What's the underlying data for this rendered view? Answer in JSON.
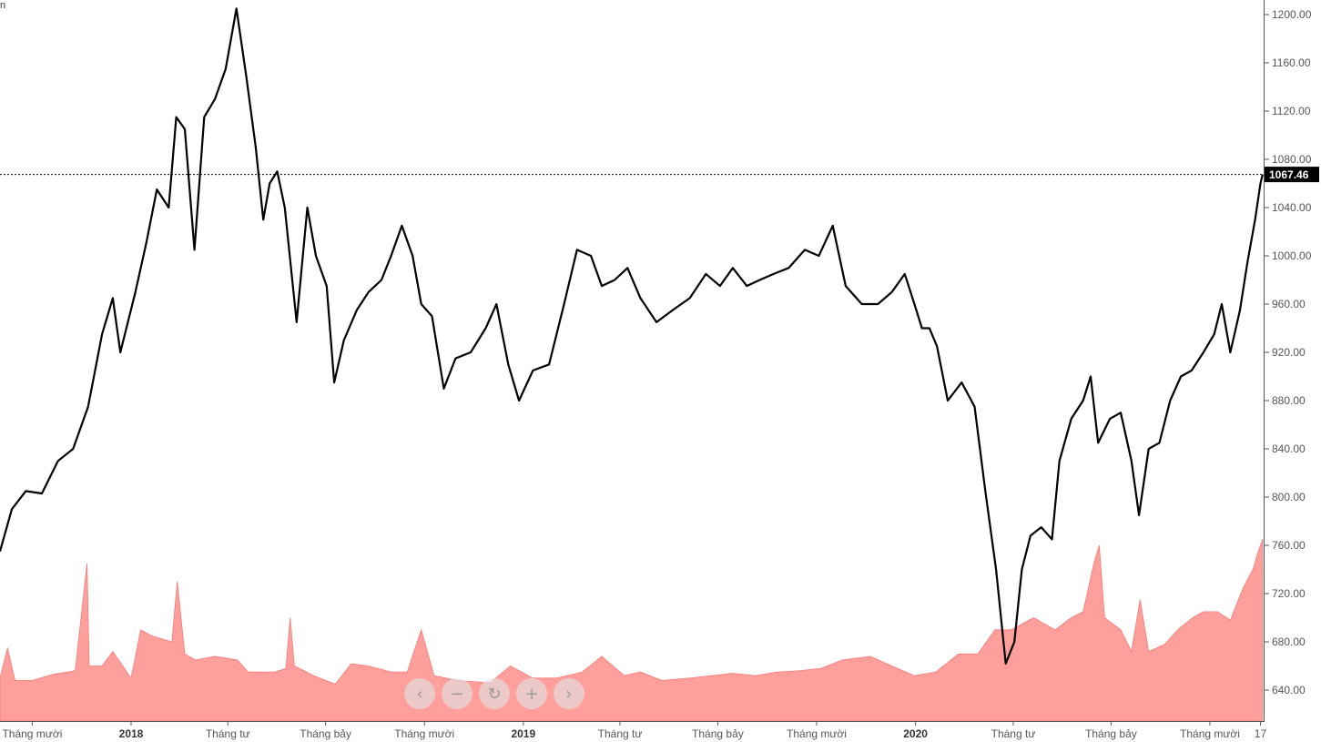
{
  "corner_label": "n",
  "nav_buttons": [
    {
      "name": "scroll-left-button",
      "icon": "chevron-left-icon",
      "glyph": "‹"
    },
    {
      "name": "zoom-out-button",
      "icon": "minus-icon",
      "glyph": "−"
    },
    {
      "name": "reset-button",
      "icon": "refresh-icon",
      "glyph": "↻"
    },
    {
      "name": "zoom-in-button",
      "icon": "plus-icon",
      "glyph": "+"
    },
    {
      "name": "scroll-right-button",
      "icon": "chevron-right-icon",
      "glyph": "›"
    }
  ],
  "chart_data": {
    "type": "line",
    "title": "",
    "xlabel": "",
    "ylabel": "",
    "last_value": 1067.46,
    "last_value_label": "1067.46",
    "ylim": [
      620,
      1210
    ],
    "y_ticks": [
      640,
      680,
      720,
      760,
      800,
      840,
      880,
      920,
      960,
      1000,
      1040,
      1080,
      1120,
      1160,
      1200
    ],
    "y_tick_labels": [
      "640.00",
      "680.00",
      "720.00",
      "760.00",
      "800.00",
      "840.00",
      "880.00",
      "920.00",
      "960.00",
      "1000.00",
      "1040.00",
      "1080.00",
      "1120.00",
      "1160.00",
      "1200.00"
    ],
    "xlim": [
      "2017-09-01",
      "2020-11-20"
    ],
    "x_ticks": [
      {
        "date": "2017-10-01",
        "label": "Tháng mười",
        "bold": false
      },
      {
        "date": "2018-01-01",
        "label": "2018",
        "bold": true
      },
      {
        "date": "2018-04-01",
        "label": "Tháng tư",
        "bold": false
      },
      {
        "date": "2018-07-01",
        "label": "Tháng bảy",
        "bold": false
      },
      {
        "date": "2018-10-01",
        "label": "Tháng mười",
        "bold": false
      },
      {
        "date": "2019-01-01",
        "label": "2019",
        "bold": true
      },
      {
        "date": "2019-04-01",
        "label": "Tháng tư",
        "bold": false
      },
      {
        "date": "2019-07-01",
        "label": "Tháng bảy",
        "bold": false
      },
      {
        "date": "2019-10-01",
        "label": "Tháng mười",
        "bold": false
      },
      {
        "date": "2020-01-01",
        "label": "2020",
        "bold": true
      },
      {
        "date": "2020-04-01",
        "label": "Tháng tư",
        "bold": false
      },
      {
        "date": "2020-07-01",
        "label": "Tháng bảy",
        "bold": false
      },
      {
        "date": "2020-10-01",
        "label": "Tháng mười",
        "bold": false
      },
      {
        "date": "2020-11-17",
        "label": "17",
        "bold": false
      }
    ],
    "series": [
      {
        "type": "line",
        "color": "#000000",
        "points": [
          [
            "2017-09-01",
            755
          ],
          [
            "2017-09-12",
            790
          ],
          [
            "2017-09-25",
            805
          ],
          [
            "2017-10-10",
            803
          ],
          [
            "2017-10-25",
            830
          ],
          [
            "2017-11-08",
            840
          ],
          [
            "2017-11-22",
            875
          ],
          [
            "2017-12-05",
            935
          ],
          [
            "2017-12-15",
            965
          ],
          [
            "2017-12-22",
            920
          ],
          [
            "2018-01-05",
            970
          ],
          [
            "2018-01-15",
            1010
          ],
          [
            "2018-01-25",
            1055
          ],
          [
            "2018-02-05",
            1040
          ],
          [
            "2018-02-12",
            1115
          ],
          [
            "2018-02-20",
            1105
          ],
          [
            "2018-03-01",
            1005
          ],
          [
            "2018-03-10",
            1115
          ],
          [
            "2018-03-20",
            1130
          ],
          [
            "2018-03-30",
            1155
          ],
          [
            "2018-04-09",
            1205
          ],
          [
            "2018-04-18",
            1150
          ],
          [
            "2018-04-27",
            1090
          ],
          [
            "2018-05-04",
            1030
          ],
          [
            "2018-05-10",
            1060
          ],
          [
            "2018-05-17",
            1070
          ],
          [
            "2018-05-24",
            1040
          ],
          [
            "2018-06-04",
            945
          ],
          [
            "2018-06-14",
            1040
          ],
          [
            "2018-06-22",
            1000
          ],
          [
            "2018-07-02",
            975
          ],
          [
            "2018-07-09",
            895
          ],
          [
            "2018-07-18",
            930
          ],
          [
            "2018-07-30",
            955
          ],
          [
            "2018-08-10",
            970
          ],
          [
            "2018-08-22",
            980
          ],
          [
            "2018-08-31",
            1000
          ],
          [
            "2018-09-10",
            1025
          ],
          [
            "2018-09-20",
            1000
          ],
          [
            "2018-09-28",
            960
          ],
          [
            "2018-10-08",
            950
          ],
          [
            "2018-10-19",
            890
          ],
          [
            "2018-10-30",
            915
          ],
          [
            "2018-11-13",
            920
          ],
          [
            "2018-11-27",
            940
          ],
          [
            "2018-12-07",
            960
          ],
          [
            "2018-12-18",
            910
          ],
          [
            "2018-12-28",
            880
          ],
          [
            "2019-01-10",
            905
          ],
          [
            "2019-01-25",
            910
          ],
          [
            "2019-02-08",
            960
          ],
          [
            "2019-02-20",
            1005
          ],
          [
            "2019-03-05",
            1000
          ],
          [
            "2019-03-15",
            975
          ],
          [
            "2019-03-27",
            980
          ],
          [
            "2019-04-08",
            990
          ],
          [
            "2019-04-20",
            965
          ],
          [
            "2019-05-05",
            945
          ],
          [
            "2019-05-20",
            955
          ],
          [
            "2019-06-05",
            965
          ],
          [
            "2019-06-20",
            985
          ],
          [
            "2019-07-03",
            975
          ],
          [
            "2019-07-15",
            990
          ],
          [
            "2019-07-28",
            975
          ],
          [
            "2019-08-09",
            980
          ],
          [
            "2019-08-22",
            985
          ],
          [
            "2019-09-05",
            990
          ],
          [
            "2019-09-20",
            1005
          ],
          [
            "2019-10-03",
            1000
          ],
          [
            "2019-10-16",
            1025
          ],
          [
            "2019-10-28",
            975
          ],
          [
            "2019-11-12",
            960
          ],
          [
            "2019-11-27",
            960
          ],
          [
            "2019-12-10",
            970
          ],
          [
            "2019-12-22",
            985
          ],
          [
            "2019-12-31",
            960
          ],
          [
            "2020-01-07",
            940
          ],
          [
            "2020-01-14",
            940
          ],
          [
            "2020-01-21",
            925
          ],
          [
            "2020-01-31",
            880
          ],
          [
            "2020-02-13",
            895
          ],
          [
            "2020-02-25",
            875
          ],
          [
            "2020-03-06",
            805
          ],
          [
            "2020-03-16",
            740
          ],
          [
            "2020-03-25",
            662
          ],
          [
            "2020-04-02",
            680
          ],
          [
            "2020-04-09",
            740
          ],
          [
            "2020-04-17",
            768
          ],
          [
            "2020-04-27",
            775
          ],
          [
            "2020-05-07",
            765
          ],
          [
            "2020-05-14",
            830
          ],
          [
            "2020-05-25",
            865
          ],
          [
            "2020-06-05",
            880
          ],
          [
            "2020-06-12",
            900
          ],
          [
            "2020-06-19",
            845
          ],
          [
            "2020-06-30",
            865
          ],
          [
            "2020-07-10",
            870
          ],
          [
            "2020-07-20",
            830
          ],
          [
            "2020-07-27",
            785
          ],
          [
            "2020-08-05",
            840
          ],
          [
            "2020-08-15",
            845
          ],
          [
            "2020-08-25",
            880
          ],
          [
            "2020-09-04",
            900
          ],
          [
            "2020-09-14",
            905
          ],
          [
            "2020-09-25",
            920
          ],
          [
            "2020-10-05",
            935
          ],
          [
            "2020-10-12",
            960
          ],
          [
            "2020-10-20",
            920
          ],
          [
            "2020-10-29",
            955
          ],
          [
            "2020-11-05",
            995
          ],
          [
            "2020-11-12",
            1030
          ],
          [
            "2020-11-17",
            1060
          ],
          [
            "2020-11-19",
            1067.46
          ]
        ]
      },
      {
        "type": "area",
        "color": "#ff9f9b",
        "points": [
          [
            "2017-09-01",
            650
          ],
          [
            "2017-09-08",
            675
          ],
          [
            "2017-09-15",
            648
          ],
          [
            "2017-10-01",
            648
          ],
          [
            "2017-10-20",
            653
          ],
          [
            "2017-11-10",
            656
          ],
          [
            "2017-11-21",
            745
          ],
          [
            "2017-11-23",
            660
          ],
          [
            "2017-12-05",
            660
          ],
          [
            "2017-12-15",
            672
          ],
          [
            "2018-01-01",
            650
          ],
          [
            "2018-01-10",
            690
          ],
          [
            "2018-01-20",
            685
          ],
          [
            "2018-02-08",
            680
          ],
          [
            "2018-02-13",
            730
          ],
          [
            "2018-02-20",
            670
          ],
          [
            "2018-03-02",
            665
          ],
          [
            "2018-03-20",
            668
          ],
          [
            "2018-04-10",
            665
          ],
          [
            "2018-04-20",
            655
          ],
          [
            "2018-05-15",
            655
          ],
          [
            "2018-05-25",
            658
          ],
          [
            "2018-05-29",
            700
          ],
          [
            "2018-06-02",
            660
          ],
          [
            "2018-06-20",
            652
          ],
          [
            "2018-07-10",
            645
          ],
          [
            "2018-07-25",
            662
          ],
          [
            "2018-08-10",
            660
          ],
          [
            "2018-08-31",
            655
          ],
          [
            "2018-09-15",
            655
          ],
          [
            "2018-09-28",
            690
          ],
          [
            "2018-10-10",
            652
          ],
          [
            "2018-11-01",
            648
          ],
          [
            "2018-12-01",
            646
          ],
          [
            "2018-12-20",
            660
          ],
          [
            "2019-01-10",
            650
          ],
          [
            "2019-02-01",
            650
          ],
          [
            "2019-02-25",
            655
          ],
          [
            "2019-03-15",
            668
          ],
          [
            "2019-04-05",
            652
          ],
          [
            "2019-04-20",
            655
          ],
          [
            "2019-05-10",
            648
          ],
          [
            "2019-06-05",
            650
          ],
          [
            "2019-06-25",
            652
          ],
          [
            "2019-07-15",
            654
          ],
          [
            "2019-08-05",
            652
          ],
          [
            "2019-08-25",
            655
          ],
          [
            "2019-09-15",
            656
          ],
          [
            "2019-10-05",
            658
          ],
          [
            "2019-10-25",
            665
          ],
          [
            "2019-11-20",
            668
          ],
          [
            "2019-12-10",
            660
          ],
          [
            "2019-12-31",
            652
          ],
          [
            "2020-01-20",
            655
          ],
          [
            "2020-02-10",
            670
          ],
          [
            "2020-02-28",
            670
          ],
          [
            "2020-03-15",
            690
          ],
          [
            "2020-03-30",
            690
          ],
          [
            "2020-04-20",
            700
          ],
          [
            "2020-05-10",
            690
          ],
          [
            "2020-05-25",
            700
          ],
          [
            "2020-06-05",
            705
          ],
          [
            "2020-06-15",
            745
          ],
          [
            "2020-06-20",
            760
          ],
          [
            "2020-06-25",
            700
          ],
          [
            "2020-07-10",
            690
          ],
          [
            "2020-07-20",
            672
          ],
          [
            "2020-07-28",
            715
          ],
          [
            "2020-08-05",
            672
          ],
          [
            "2020-08-20",
            678
          ],
          [
            "2020-09-01",
            690
          ],
          [
            "2020-09-15",
            700
          ],
          [
            "2020-09-25",
            705
          ],
          [
            "2020-10-08",
            705
          ],
          [
            "2020-10-20",
            698
          ],
          [
            "2020-11-01",
            725
          ],
          [
            "2020-11-10",
            740
          ],
          [
            "2020-11-15",
            755
          ],
          [
            "2020-11-19",
            765
          ]
        ]
      }
    ]
  }
}
